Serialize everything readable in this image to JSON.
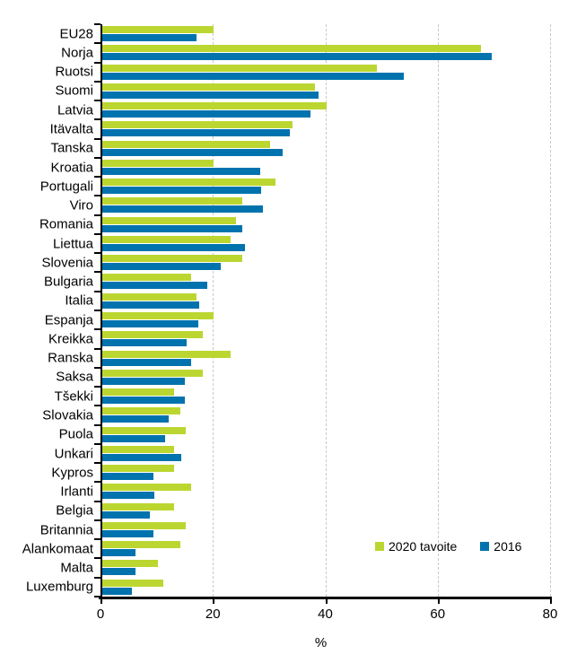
{
  "chart_data": {
    "type": "bar",
    "orientation": "horizontal",
    "title": "",
    "xlabel": "%",
    "ylabel": "",
    "xlim": [
      0,
      80
    ],
    "x_ticks": [
      0,
      20,
      40,
      60,
      80
    ],
    "grid": "vertical-dashed",
    "legend_position": "inside-bottom-right",
    "categories": [
      "EU28",
      "Norja",
      "Ruotsi",
      "Suomi",
      "Latvia",
      "Itävalta",
      "Tanska",
      "Kroatia",
      "Portugali",
      "Viro",
      "Romania",
      "Liettua",
      "Slovenia",
      "Bulgaria",
      "Italia",
      "Espanja",
      "Kreikka",
      "Ranska",
      "Saksa",
      "Tšekki",
      "Slovakia",
      "Puola",
      "Unkari",
      "Kypros",
      "Irlanti",
      "Belgia",
      "Britannia",
      "Alankomaat",
      "Malta",
      "Luxemburg"
    ],
    "series": [
      {
        "name": "2020 tavoite",
        "color": "#bcd631",
        "values": [
          20,
          67.5,
          49,
          38,
          40,
          34,
          30,
          20,
          31,
          25,
          24,
          23,
          25,
          16,
          17,
          20,
          18,
          23,
          18,
          13,
          14,
          15,
          13,
          13,
          16,
          13,
          15,
          14,
          10,
          11
        ]
      },
      {
        "name": "2016",
        "color": "#0073ae",
        "values": [
          17.0,
          69.4,
          53.8,
          38.7,
          37.2,
          33.5,
          32.2,
          28.3,
          28.5,
          28.8,
          25.0,
          25.6,
          21.3,
          18.8,
          17.4,
          17.3,
          15.2,
          16.0,
          14.8,
          14.9,
          12.0,
          11.3,
          14.2,
          9.3,
          9.5,
          8.7,
          9.3,
          6.0,
          6.0,
          5.4
        ]
      }
    ]
  },
  "axis": {
    "xlabel": "%"
  },
  "colors": {
    "axis": "#000000",
    "gridline": "#c9c9c9",
    "text": "#000000",
    "background": "#ffffff"
  }
}
